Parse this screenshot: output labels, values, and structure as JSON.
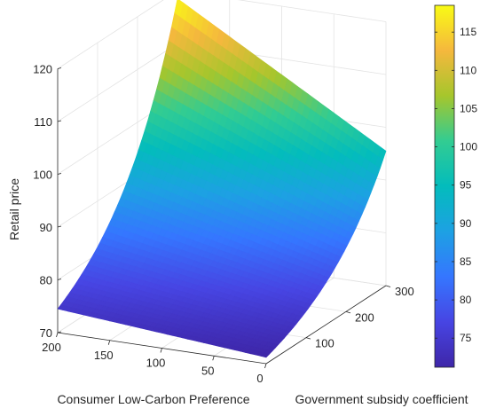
{
  "chart_data": {
    "type": "surface",
    "title": "",
    "zlabel": "Retail price",
    "xlabel": "Consumer Low-Carbon Preference",
    "ylabel": "Government subsidy coefficient",
    "xlim": [
      0,
      200
    ],
    "ylim": [
      0,
      300
    ],
    "zlim": [
      70,
      120
    ],
    "x_ticks": [
      0,
      50,
      100,
      150,
      200
    ],
    "y_ticks": [
      100,
      200,
      300
    ],
    "z_ticks": [
      70,
      80,
      90,
      100,
      110,
      120
    ],
    "corner_values": [
      {
        "x": 200,
        "y": 0,
        "z": 74.5
      },
      {
        "x": 0,
        "y": 0,
        "z": 71.2
      },
      {
        "x": 0,
        "y": 300,
        "z": 95.5
      },
      {
        "x": 200,
        "y": 300,
        "z": 118.5
      }
    ],
    "colormap": "parula",
    "colorbar": {
      "limits": [
        71.2,
        118.5
      ],
      "ticks": [
        75,
        80,
        85,
        90,
        95,
        100,
        105,
        110,
        115
      ]
    },
    "grid": true
  }
}
